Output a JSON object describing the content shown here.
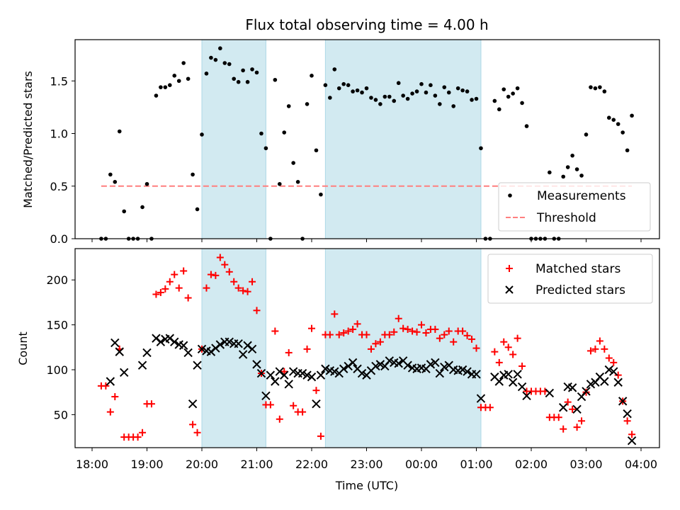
{
  "chart_data": [
    {
      "type": "scatter",
      "panel": "top",
      "title": "Flux total observing time = 4.00 h",
      "xlabel": "",
      "ylabel": "Matched/Predicted stars",
      "ylim": [
        0,
        1.9
      ],
      "yticks": [
        0.0,
        0.5,
        1.0,
        1.5
      ],
      "ytick_labels": [
        "0.0",
        "0.5",
        "1.0",
        "1.5"
      ],
      "xlim_minutes_from_18h": [
        -19,
        620
      ],
      "grid": false,
      "legend": {
        "placement": "lower-right",
        "entries": [
          {
            "label": "Measurements",
            "marker": "dot",
            "color": "#000000"
          },
          {
            "label": "Threshold",
            "marker": "dashed-line",
            "color": "#ff7f7f"
          }
        ]
      },
      "threshold": {
        "value": 0.5,
        "start_minutes": 10,
        "end_minutes": 590,
        "color": "#ff7f7f"
      },
      "shaded_spans": [
        {
          "start": "20:00",
          "end": "21:10",
          "color": "#add8e6"
        },
        {
          "start": "22:15",
          "end": "01:05",
          "color": "#add8e6"
        }
      ],
      "series": [
        {
          "name": "Measurements",
          "color": "#000000",
          "start_minutes": 10,
          "step_minutes": 5,
          "values": [
            0,
            0,
            0.61,
            0.54,
            1.02,
            0.26,
            0,
            0,
            0,
            0.3,
            0.52,
            0,
            1.36,
            1.44,
            1.44,
            1.46,
            1.55,
            1.5,
            1.67,
            1.52,
            0.61,
            0.28,
            0.99,
            1.57,
            1.72,
            1.7,
            1.81,
            1.67,
            1.66,
            1.52,
            1.49,
            1.6,
            1.49,
            1.61,
            1.58,
            1.0,
            0.86,
            0,
            1.51,
            0.52,
            1.01,
            1.26,
            0.72,
            0.54,
            0,
            1.28,
            1.55,
            0.84,
            0.42,
            1.46,
            1.34,
            1.61,
            1.43,
            1.47,
            1.46,
            1.4,
            1.41,
            1.39,
            1.43,
            1.34,
            1.32,
            1.28,
            1.35,
            1.35,
            1.31,
            1.48,
            1.36,
            1.33,
            1.38,
            1.4,
            1.47,
            1.39,
            1.46,
            1.36,
            1.28,
            1.44,
            1.39,
            1.26,
            1.43,
            1.41,
            1.4,
            1.32,
            1.33,
            0.86,
            0,
            0,
            1.31,
            1.23,
            1.42,
            1.35,
            1.38,
            1.43,
            1.29,
            1.07,
            0,
            0,
            0,
            0,
            0.63,
            0,
            0,
            0.59,
            0.68,
            0.79,
            0.66,
            0.6,
            0.99,
            1.44,
            1.43,
            1.44,
            1.4,
            1.15,
            1.13,
            1.09,
            1.01,
            0.84,
            1.17
          ]
        }
      ]
    },
    {
      "type": "scatter",
      "panel": "bottom",
      "title": "",
      "xlabel": "Time (UTC)",
      "ylabel": "Count",
      "ylim": [
        12,
        234
      ],
      "yticks": [
        50,
        100,
        150,
        200
      ],
      "ytick_labels": [
        "50",
        "100",
        "150",
        "200"
      ],
      "xticks": [
        "18:00",
        "19:00",
        "20:00",
        "21:00",
        "22:00",
        "23:00",
        "00:00",
        "01:00",
        "02:00",
        "03:00",
        "04:00"
      ],
      "xlim_minutes_from_18h": [
        -19,
        620
      ],
      "grid": false,
      "legend": {
        "placement": "top-right",
        "entries": [
          {
            "label": "Matched stars",
            "marker": "plus",
            "color": "#ff0000"
          },
          {
            "label": "Predicted stars",
            "marker": "x",
            "color": "#000000"
          }
        ]
      },
      "shaded_spans": [
        {
          "start": "20:00",
          "end": "21:10",
          "color": "#add8e6"
        },
        {
          "start": "22:15",
          "end": "01:05",
          "color": "#add8e6"
        }
      ],
      "series": [
        {
          "name": "Matched stars",
          "marker": "plus",
          "color": "#ff0000",
          "start_minutes": 10,
          "step_minutes": 5,
          "values": [
            82,
            82,
            53,
            70,
            123,
            25,
            25,
            25,
            25,
            30,
            62,
            62,
            184,
            186,
            190,
            198,
            206,
            191,
            210,
            180,
            39,
            30,
            123,
            191,
            206,
            205,
            225,
            217,
            209,
            198,
            191,
            188,
            187,
            198,
            166,
            96,
            61,
            61,
            143,
            45,
            98,
            119,
            60,
            53,
            53,
            123,
            146,
            77,
            26,
            139,
            139,
            162,
            139,
            141,
            143,
            145,
            151,
            139,
            139,
            123,
            129,
            131,
            139,
            139,
            142,
            157,
            146,
            145,
            143,
            142,
            150,
            141,
            145,
            145,
            135,
            139,
            143,
            131,
            143,
            143,
            138,
            134,
            124,
            58,
            58,
            58,
            120,
            108,
            131,
            125,
            117,
            135,
            104,
            76,
            76,
            76,
            76,
            76,
            47,
            47,
            47,
            34,
            64,
            56,
            36,
            43,
            75,
            121,
            123,
            132,
            123,
            113,
            108,
            94,
            65,
            43,
            28
          ]
        },
        {
          "name": "Predicted stars",
          "marker": "x",
          "color": "#000000",
          "start_minutes": 10,
          "step_minutes": 5,
          "values": [
            null,
            null,
            87,
            130,
            120,
            97,
            null,
            null,
            null,
            105,
            119,
            null,
            135,
            131,
            134,
            135,
            131,
            128,
            127,
            119,
            62,
            105,
            123,
            121,
            120,
            124,
            128,
            131,
            131,
            129,
            129,
            117,
            127,
            123,
            106,
            96,
            71,
            94,
            87,
            98,
            94,
            84,
            98,
            96,
            96,
            94,
            92,
            62,
            94,
            101,
            99,
            98,
            96,
            101,
            104,
            108,
            101,
            96,
            94,
            99,
            104,
            106,
            104,
            110,
            108,
            107,
            110,
            105,
            102,
            101,
            102,
            101,
            106,
            108,
            96,
            103,
            105,
            100,
            99,
            100,
            98,
            95,
            95,
            68,
            null,
            null,
            92,
            87,
            94,
            95,
            86,
            95,
            81,
            71,
            null,
            null,
            null,
            null,
            74,
            null,
            null,
            58,
            81,
            80,
            56,
            70,
            76,
            84,
            86,
            92,
            87,
            100,
            98,
            86,
            65,
            51,
            21
          ]
        }
      ]
    }
  ]
}
